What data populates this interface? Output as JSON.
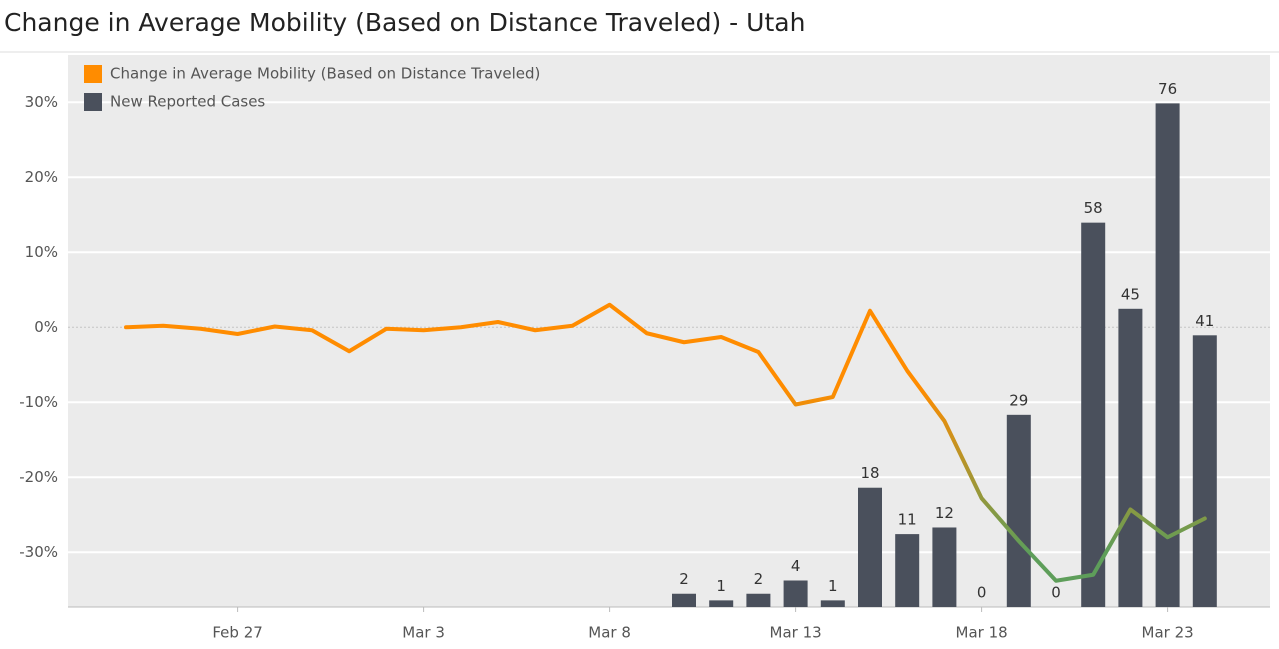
{
  "chart_data": {
    "type": "line",
    "title": "Change in Average Mobility (Based on Distance Traveled) - Utah",
    "categories": [
      null,
      null,
      null,
      "Feb 27",
      null,
      null,
      null,
      null,
      "Mar 3",
      null,
      null,
      null,
      null,
      "Mar 8",
      null,
      null,
      null,
      null,
      "Mar 13",
      null,
      null,
      null,
      null,
      "Mar 18",
      null,
      null,
      null,
      null,
      "Mar 23",
      null
    ],
    "series": [
      {
        "name": "Change in Average Mobility (Based on Distance Traveled)",
        "type": "line",
        "color": "#ff8c00",
        "gradient_color": "#5e9e5a",
        "values": [
          0.0,
          0.2,
          -0.2,
          -0.9,
          0.1,
          -0.4,
          -3.2,
          -0.2,
          -0.4,
          0.0,
          0.7,
          -0.4,
          0.2,
          3.0,
          -0.8,
          -2.0,
          -1.3,
          -3.3,
          -10.3,
          -9.3,
          2.2,
          -5.8,
          -12.5,
          -22.8,
          -28.5,
          -33.8,
          -33.0,
          -24.3,
          -28.0,
          -25.5
        ]
      },
      {
        "name": "New Reported Cases",
        "type": "bar",
        "axis": "y2",
        "color": "#4a505c",
        "values": [
          null,
          null,
          null,
          null,
          null,
          null,
          null,
          null,
          null,
          null,
          null,
          null,
          null,
          null,
          null,
          2,
          1,
          2,
          4,
          1,
          18,
          11,
          12,
          0,
          29,
          0,
          58,
          45,
          76,
          41
        ]
      }
    ],
    "ylim": [
      -37.3,
      36.3
    ],
    "yticks": [
      {
        "value": 30,
        "label": "30%"
      },
      {
        "value": 20,
        "label": "20%"
      },
      {
        "value": 10,
        "label": "10%"
      },
      {
        "value": 0,
        "label": "0%"
      },
      {
        "value": -10,
        "label": "-10%"
      },
      {
        "value": -20,
        "label": "-20%"
      },
      {
        "value": -30,
        "label": "-30%"
      }
    ],
    "y2lim": [
      0,
      83.3
    ],
    "grid": true,
    "legend": "top-left"
  }
}
